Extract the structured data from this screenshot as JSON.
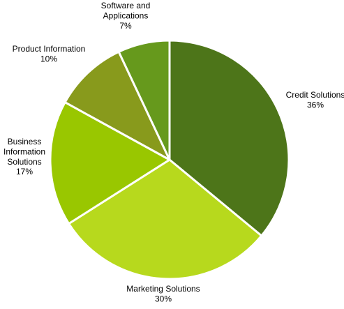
{
  "chart_data": {
    "type": "pie",
    "title": "",
    "start_angle_deg": 0,
    "direction": "clockwise",
    "slice_border_color": "#ffffff",
    "slices": [
      {
        "label_lines": [
          "Credit Solutions"
        ],
        "value": 36,
        "value_text": "36%",
        "color": "#4d7519"
      },
      {
        "label_lines": [
          "Marketing Solutions"
        ],
        "value": 30,
        "value_text": "30%",
        "color": "#b7d91d"
      },
      {
        "label_lines": [
          "Business",
          "Information",
          "Solutions"
        ],
        "value": 17,
        "value_text": "17%",
        "color": "#99c700"
      },
      {
        "label_lines": [
          "Product Information"
        ],
        "value": 10,
        "value_text": "10%",
        "color": "#889a1c"
      },
      {
        "label_lines": [
          "Software and",
          "Applications"
        ],
        "value": 7,
        "value_text": "7%",
        "color": "#66991c"
      }
    ]
  }
}
